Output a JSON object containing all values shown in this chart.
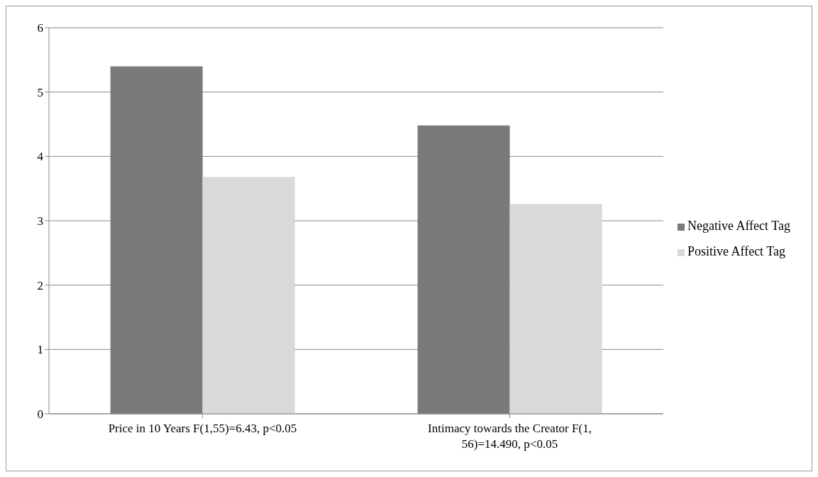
{
  "chart_data": {
    "type": "bar",
    "categories": [
      "Price in 10 Years F(1,55)=6.43, p<0.05",
      "Intimacy towards the Creator F(1, 56)=14.490, p<0.05"
    ],
    "series": [
      {
        "name": "Negative Affect Tag",
        "color": "#7a7a7a",
        "values": [
          5.4,
          4.48
        ]
      },
      {
        "name": "Positive Affect Tag",
        "color": "#d9d9d9",
        "values": [
          3.68,
          3.26
        ]
      }
    ],
    "ylim": [
      0,
      6
    ],
    "yticks": [
      0,
      1,
      2,
      3,
      4,
      5,
      6
    ],
    "grid": "y",
    "legend": "right"
  }
}
